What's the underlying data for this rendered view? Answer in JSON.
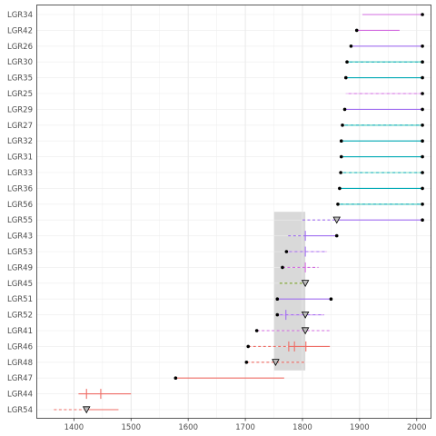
{
  "chart_data": {
    "type": "interval",
    "title": "",
    "xlabel": "",
    "ylabel": "",
    "xlim": [
      1335,
      2025
    ],
    "x_ticks": [
      1400,
      1500,
      1600,
      1700,
      1800,
      1900,
      2000
    ],
    "grid": true,
    "shaded_band": {
      "x": [
        1750,
        1805
      ],
      "color": "#d9d9d9"
    },
    "color_names": {
      "magenta": "#d36ce0",
      "purple": "#a06ff0",
      "teal": "#00a9b4",
      "red": "#ee6c65",
      "olive": "#7aa22a"
    },
    "rows": [
      {
        "label": "LGR34",
        "color": "#d36ce0",
        "x1": 1905,
        "x2": 2010,
        "dashed": false,
        "dot": 2010,
        "tri": null,
        "ticks": []
      },
      {
        "label": "LGR42",
        "color": "#d36ce0",
        "x1": 1895,
        "x2": 1970,
        "dashed": false,
        "dot": 1895,
        "tri": null,
        "ticks": []
      },
      {
        "label": "LGR26",
        "color": "#a06ff0",
        "x1": 1885,
        "x2": 2010,
        "dashed": false,
        "dot": 1885,
        "tri": null,
        "ticks": [],
        "dot2": 2010
      },
      {
        "label": "LGR30",
        "color": "#00a9b4",
        "x1": 1878,
        "x2": 2010,
        "dashed": false,
        "dot": 1878,
        "tri": null,
        "ticks": [],
        "dot2": 2010,
        "dash_over": true
      },
      {
        "label": "LGR35",
        "color": "#00a9b4",
        "x1": 1876,
        "x2": 2010,
        "dashed": false,
        "dot": 1876,
        "tri": null,
        "ticks": [],
        "dot2": 2010
      },
      {
        "label": "LGR25",
        "color": "#d36ce0",
        "x1": 1876,
        "x2": 2010,
        "dashed": false,
        "dot": 2010,
        "tri": null,
        "ticks": [],
        "dash_over": true
      },
      {
        "label": "LGR29",
        "color": "#a06ff0",
        "x1": 1874,
        "x2": 2010,
        "dashed": false,
        "dot": 1874,
        "tri": null,
        "ticks": [],
        "dot2": 2010
      },
      {
        "label": "LGR27",
        "color": "#00a9b4",
        "x1": 1870,
        "x2": 2010,
        "dashed": false,
        "dot": 1870,
        "tri": null,
        "ticks": [],
        "dot2": 2010,
        "dash_over": true
      },
      {
        "label": "LGR32",
        "color": "#00a9b4",
        "x1": 1868,
        "x2": 2010,
        "dashed": false,
        "dot": 1868,
        "tri": null,
        "ticks": [],
        "dot2": 2010
      },
      {
        "label": "LGR31",
        "color": "#00a9b4",
        "x1": 1868,
        "x2": 2010,
        "dashed": false,
        "dot": 1868,
        "tri": null,
        "ticks": [],
        "dot2": 2010
      },
      {
        "label": "LGR33",
        "color": "#00a9b4",
        "x1": 1867,
        "x2": 2010,
        "dashed": false,
        "dot": 1867,
        "tri": null,
        "ticks": [],
        "dot2": 2010,
        "dash_over": true
      },
      {
        "label": "LGR36",
        "color": "#00a9b4",
        "x1": 1865,
        "x2": 2010,
        "dashed": false,
        "dot": 1865,
        "tri": null,
        "ticks": [],
        "dot2": 2010
      },
      {
        "label": "LGR56",
        "color": "#00a9b4",
        "x1": 1862,
        "x2": 2010,
        "dashed": false,
        "dot": 1862,
        "tri": null,
        "ticks": [],
        "dot2": 2010,
        "dash_over": true
      },
      {
        "label": "LGR55",
        "color": "#a06ff0",
        "x1": 1800,
        "x2": 2010,
        "dashed": true,
        "dot": 2010,
        "tri": 1860,
        "ticks": [],
        "solid_from": 1860
      },
      {
        "label": "LGR43",
        "color": "#a06ff0",
        "x1": 1775,
        "x2": 1860,
        "dashed": true,
        "dot": 1860,
        "tri": null,
        "ticks": [
          1805
        ],
        "solid_from": 1805
      },
      {
        "label": "LGR53",
        "color": "#a06ff0",
        "x1": 1772,
        "x2": 1843,
        "dashed": false,
        "dot": 1772,
        "tri": null,
        "ticks": [
          1805
        ],
        "dash_over": true
      },
      {
        "label": "LGR49",
        "color": "#d36ce0",
        "x1": 1765,
        "x2": 1828,
        "dashed": true,
        "dot": 1765,
        "tri": null,
        "ticks": [
          1805
        ]
      },
      {
        "label": "LGR45",
        "color": "#7aa22a",
        "x1": 1760,
        "x2": 1805,
        "dashed": true,
        "dot": null,
        "tri": 1805,
        "ticks": []
      },
      {
        "label": "LGR51",
        "color": "#a06ff0",
        "x1": 1756,
        "x2": 1850,
        "dashed": false,
        "dot": 1756,
        "tri": null,
        "ticks": [],
        "dot2": 1850
      },
      {
        "label": "LGR52",
        "color": "#a06ff0",
        "x1": 1756,
        "x2": 1838,
        "dashed": false,
        "dot": 1756,
        "tri": 1805,
        "ticks": [
          1771
        ],
        "dash_over": true
      },
      {
        "label": "LGR41",
        "color": "#d36ce0",
        "x1": 1720,
        "x2": 1850,
        "dashed": true,
        "dot": 1720,
        "tri": 1805,
        "ticks": []
      },
      {
        "label": "LGR46",
        "color": "#ee6c65",
        "x1": 1705,
        "x2": 1848,
        "dashed": true,
        "dot": 1705,
        "tri": null,
        "ticks": [
          1776,
          1786,
          1806
        ],
        "solid_from": 1776
      },
      {
        "label": "LGR48",
        "color": "#ee6c65",
        "x1": 1702,
        "x2": 1805,
        "dashed": true,
        "dot": 1702,
        "tri": 1753,
        "ticks": []
      },
      {
        "label": "LGR47",
        "color": "#ee6c65",
        "x1": 1578,
        "x2": 1768,
        "dashed": false,
        "dot": 1578,
        "tri": null,
        "ticks": []
      },
      {
        "label": "LGR44",
        "color": "#ee6c65",
        "x1": 1408,
        "x2": 1500,
        "dashed": false,
        "dot": null,
        "tri": null,
        "ticks": [
          1422,
          1447
        ]
      },
      {
        "label": "LGR54",
        "color": "#ee6c65",
        "x1": 1365,
        "x2": 1478,
        "dashed": true,
        "dot": null,
        "tri": 1422,
        "ticks": [],
        "solid_from": 1422
      }
    ]
  }
}
